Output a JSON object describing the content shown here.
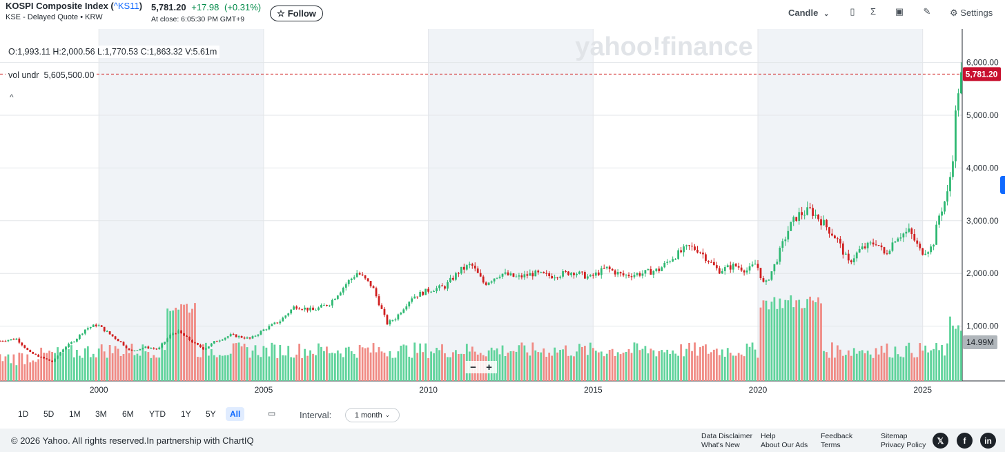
{
  "header": {
    "title": "KOSPI Composite Index (",
    "symbol": "^KS11",
    "title_close": ")",
    "subtitle": "KSE - Delayed Quote • KRW",
    "price": "5,781.20",
    "change": "+17.98",
    "change_pct": "(+0.31%)",
    "at_close": "At close: 6:05:30 PM GMT+9",
    "follow_label": "Follow",
    "chart_type_label": "Candle",
    "settings_label": "Settings"
  },
  "overlay": {
    "ohlc": "O:1,993.11  H:2,000.56  L:1,770.53  C:1,863.32  V:5.61m",
    "vol_label": "vol undr",
    "vol_value": "5,605,500.00",
    "current_price_tag": "5,781.20",
    "volume_tag": "14.99M",
    "zoom_minus": "−",
    "zoom_plus": "+",
    "watermark": "yahoo!finance"
  },
  "ranges": [
    "1D",
    "5D",
    "1M",
    "3M",
    "6M",
    "YTD",
    "1Y",
    "5Y",
    "All"
  ],
  "active_range": "All",
  "interval": {
    "label": "Interval:",
    "value": "1 month"
  },
  "footer": {
    "copyright": "© 2026 Yahoo. All rights reserved.In partnership with ChartIQ",
    "links": [
      [
        "Data Disclaimer",
        "What's New"
      ],
      [
        "Help",
        "About Our Ads"
      ],
      [
        "Feedback",
        "Terms"
      ],
      [
        "Sitemap",
        "Privacy Policy"
      ]
    ],
    "social": [
      "x-icon",
      "facebook-icon",
      "linkedin-icon"
    ]
  },
  "colors": {
    "up": "#2eb872",
    "down": "#d01f1f",
    "vol_up": "#5fd39b",
    "vol_down": "#f08a84",
    "shade": "#f0f3f7",
    "price_tag": "#c8102e",
    "vol_tag": "#b0b6bb"
  },
  "chart_data": {
    "type": "candlestick",
    "interval": "1 month",
    "ylim": [
      0,
      6500
    ],
    "y_ticks": [
      "1,000.00",
      "2,000.00",
      "3,000.00",
      "4,000.00",
      "5,000.00",
      "6,000.00"
    ],
    "x_ticks": [
      "2000",
      "2005",
      "2010",
      "2015",
      "2020",
      "2025"
    ],
    "x_range_years": [
      1997.0,
      2026.2
    ],
    "anchors": [
      [
        1997.0,
        720
      ],
      [
        1997.5,
        760
      ],
      [
        1997.9,
        500
      ],
      [
        1998.2,
        420
      ],
      [
        1998.6,
        320
      ],
      [
        1998.9,
        560
      ],
      [
        1999.3,
        750
      ],
      [
        1999.6,
        950
      ],
      [
        1999.95,
        1030
      ],
      [
        2000.3,
        860
      ],
      [
        2000.7,
        680
      ],
      [
        2000.95,
        520
      ],
      [
        2001.4,
        600
      ],
      [
        2001.8,
        560
      ],
      [
        2002.2,
        850
      ],
      [
        2002.4,
        900
      ],
      [
        2002.9,
        670
      ],
      [
        2003.2,
        560
      ],
      [
        2003.5,
        700
      ],
      [
        2004.0,
        830
      ],
      [
        2004.6,
        760
      ],
      [
        2005.0,
        930
      ],
      [
        2005.5,
        1100
      ],
      [
        2005.95,
        1380
      ],
      [
        2006.5,
        1300
      ],
      [
        2007.0,
        1430
      ],
      [
        2007.5,
        1800
      ],
      [
        2007.85,
        2020
      ],
      [
        2008.3,
        1750
      ],
      [
        2008.75,
        1050
      ],
      [
        2009.0,
        1150
      ],
      [
        2009.5,
        1550
      ],
      [
        2010.0,
        1680
      ],
      [
        2010.5,
        1750
      ],
      [
        2010.95,
        2050
      ],
      [
        2011.3,
        2170
      ],
      [
        2011.7,
        1800
      ],
      [
        2012.2,
        2000
      ],
      [
        2012.7,
        1920
      ],
      [
        2013.2,
        2000
      ],
      [
        2013.7,
        1950
      ],
      [
        2014.4,
        2030
      ],
      [
        2014.9,
        1920
      ],
      [
        2015.4,
        2100
      ],
      [
        2015.9,
        1960
      ],
      [
        2016.5,
        2000
      ],
      [
        2017.0,
        2070
      ],
      [
        2017.4,
        2300
      ],
      [
        2017.9,
        2500
      ],
      [
        2018.2,
        2450
      ],
      [
        2018.8,
        2050
      ],
      [
        2019.3,
        2150
      ],
      [
        2019.7,
        2050
      ],
      [
        2019.95,
        2200
      ],
      [
        2020.2,
        1750
      ],
      [
        2020.5,
        2150
      ],
      [
        2020.95,
        2870
      ],
      [
        2021.2,
        3100
      ],
      [
        2021.6,
        3200
      ],
      [
        2021.95,
        2980
      ],
      [
        2022.4,
        2650
      ],
      [
        2022.75,
        2200
      ],
      [
        2023.1,
        2450
      ],
      [
        2023.6,
        2600
      ],
      [
        2023.85,
        2350
      ],
      [
        2024.2,
        2700
      ],
      [
        2024.6,
        2800
      ],
      [
        2024.95,
        2400
      ],
      [
        2025.3,
        2500
      ],
      [
        2025.5,
        3100
      ],
      [
        2025.75,
        3500
      ],
      [
        2025.9,
        4100
      ],
      [
        2026.0,
        5000
      ],
      [
        2026.1,
        5600
      ],
      [
        2026.2,
        5781
      ]
    ],
    "volume_max_label": "14.99M"
  }
}
